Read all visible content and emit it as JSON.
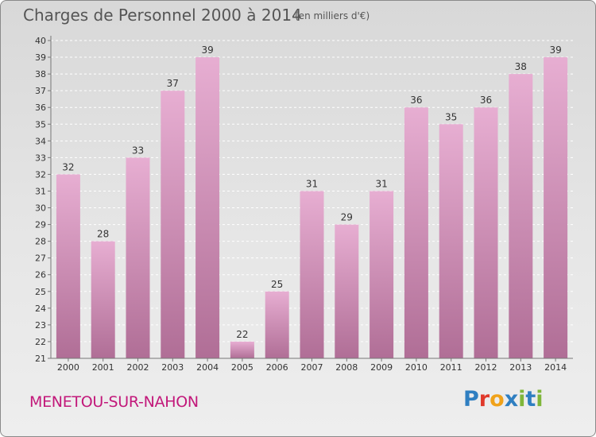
{
  "header": {
    "title": "Charges de Personnel 2000 à 2014",
    "subtitle": "(en milliers d'€)"
  },
  "footer": {
    "commune": "MENETOU-SUR-NAHON",
    "logo_text": "Proxiti"
  },
  "colors": {
    "bar_light": "#e7aed2",
    "bar_dark": "#b06e96",
    "title_text": "#555555",
    "commune_text": "#c2187a",
    "logo_letters": [
      "#2f7fc1",
      "#e0392b",
      "#f0a21a",
      "#2f7fc1",
      "#7fb63a",
      "#2f7fc1",
      "#7fb63a"
    ]
  },
  "chart_data": {
    "type": "bar",
    "title": "Charges de Personnel 2000 à 2014",
    "subtitle": "(en milliers d'€)",
    "categories": [
      "2000",
      "2001",
      "2002",
      "2003",
      "2004",
      "2005",
      "2006",
      "2007",
      "2008",
      "2009",
      "2010",
      "2011",
      "2012",
      "2013",
      "2014"
    ],
    "values": [
      32,
      28,
      33,
      37,
      39,
      22,
      25,
      31,
      29,
      31,
      36,
      35,
      36,
      38,
      39
    ],
    "data_labels": [
      "32",
      "28",
      "33",
      "37",
      "39",
      "22",
      "25",
      "31",
      "29",
      "31",
      "36",
      "35",
      "36",
      "38",
      "39"
    ],
    "ylim": [
      21,
      40
    ],
    "yticks": [
      21,
      22,
      23,
      24,
      25,
      26,
      27,
      28,
      29,
      30,
      31,
      32,
      33,
      34,
      35,
      36,
      37,
      38,
      39,
      40
    ],
    "xlabel": "",
    "ylabel": "",
    "grid": true,
    "legend": "none"
  }
}
